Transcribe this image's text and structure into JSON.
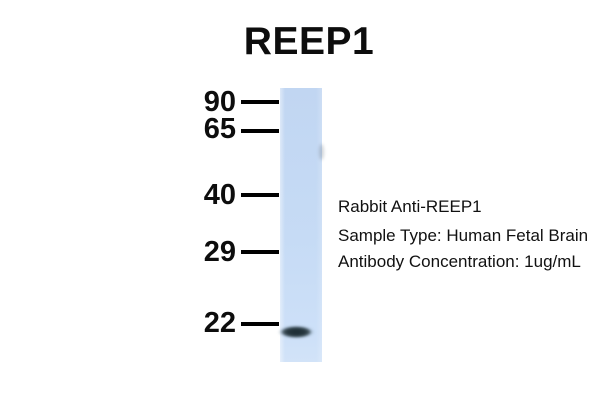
{
  "figure": {
    "title": "REEP1",
    "type": "western-blot"
  },
  "markers": [
    {
      "label": "90"
    },
    {
      "label": "65"
    },
    {
      "label": "40"
    },
    {
      "label": "29"
    },
    {
      "label": "22"
    }
  ],
  "band": {
    "near_marker_kda": "22",
    "appearance": "single dark band just below 22 marker"
  },
  "annotations": [
    "Rabbit Anti-REEP1",
    "Sample Type: Human Fetal Brain",
    "Antibody Concentration: 1ug/mL"
  ],
  "colors": {
    "background": "#ffffff",
    "lane": "#c6dbf5",
    "band_core": "#1c2c33",
    "tick": "#000000",
    "text": "#0d0d0d"
  }
}
